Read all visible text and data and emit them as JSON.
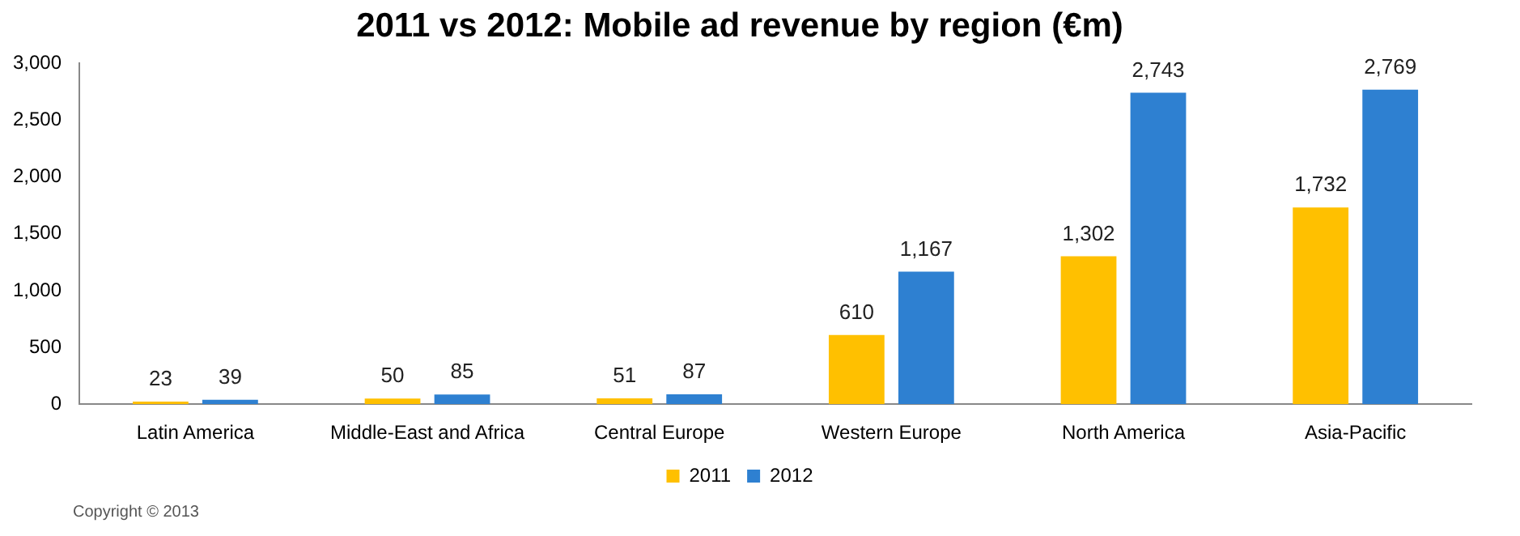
{
  "chart_data": {
    "type": "bar",
    "title": "2011 vs 2012: Mobile ad revenue by region (€m)",
    "categories": [
      "Latin America",
      "Middle-East and Africa",
      "Central Europe",
      "Western Europe",
      "North America",
      "Asia-Pacific"
    ],
    "series": [
      {
        "name": "2011",
        "color": "#ffc000",
        "values": [
          23,
          50,
          51,
          610,
          1302,
          1732
        ],
        "value_labels": [
          "23",
          "50",
          "51",
          "610",
          "1,302",
          "1,732"
        ]
      },
      {
        "name": "2012",
        "color": "#2e80d1",
        "values": [
          39,
          85,
          87,
          1167,
          2743,
          2769
        ],
        "value_labels": [
          "39",
          "85",
          "87",
          "1,167",
          "2,743",
          "2,769"
        ]
      }
    ],
    "ylim": [
      0,
      3000
    ],
    "yticks": [
      {
        "value": 0,
        "label": "0"
      },
      {
        "value": 500,
        "label": "500"
      },
      {
        "value": 1000,
        "label": "1,000"
      },
      {
        "value": 1500,
        "label": "1,500"
      },
      {
        "value": 2000,
        "label": "2,000"
      },
      {
        "value": 2500,
        "label": "2,500"
      },
      {
        "value": 3000,
        "label": "3,000"
      }
    ],
    "grid": false,
    "legend": "bottom",
    "annotations": [
      "Copyright © 2013"
    ]
  }
}
